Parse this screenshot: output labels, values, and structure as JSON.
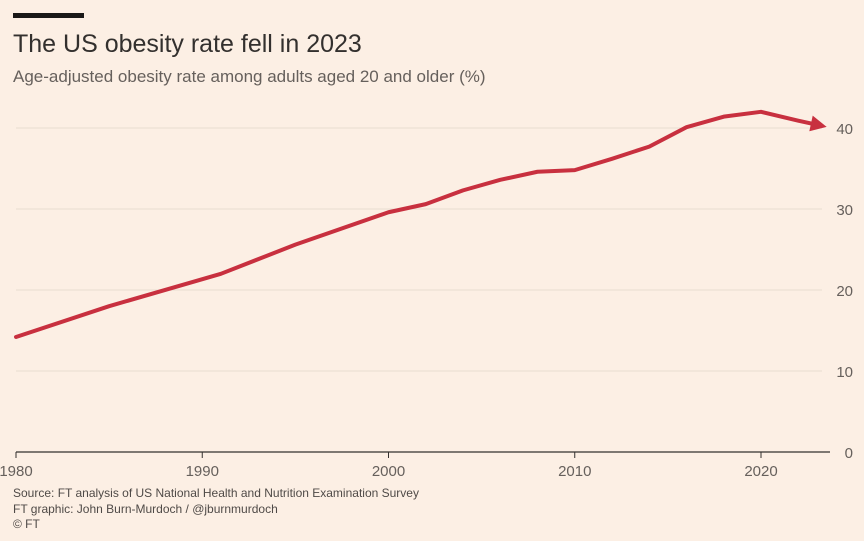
{
  "header": {
    "title": "The US obesity rate fell in 2023",
    "subtitle": "Age-adjusted obesity rate among adults aged 20 and older (%)"
  },
  "footer": {
    "source": "Source: FT analysis of US National Health and Nutrition Examination Survey",
    "graphic": "FT graphic: John Burn-Murdoch / @jburnmurdoch",
    "copyright": "© FT"
  },
  "colors": {
    "background": "#fcefe4",
    "line": "#c8303f",
    "grid": "#e8dcd1",
    "axis": "#33302e",
    "tick_text": "#66605c"
  },
  "chart_data": {
    "type": "line",
    "title": "The US obesity rate fell in 2023",
    "subtitle": "Age-adjusted obesity rate among adults aged 20 and older (%)",
    "xlabel": "",
    "ylabel": "",
    "xlim": [
      1980,
      2024.5
    ],
    "ylim": [
      0,
      42
    ],
    "x_ticks": [
      1980,
      1990,
      2000,
      2010,
      2020
    ],
    "y_ticks": [
      0,
      10,
      20,
      30,
      40
    ],
    "y_axis_side": "right",
    "grid": "horizontal",
    "line_end_marker": "arrow",
    "series": [
      {
        "x": [
          1980,
          1985,
          1991,
          1995,
          2000,
          2002,
          2004,
          2006,
          2008,
          2010,
          2012,
          2014,
          2016,
          2018,
          2020,
          2022,
          2023
        ],
        "y": [
          14.2,
          18,
          22,
          25.6,
          29.6,
          30.6,
          32.3,
          33.6,
          34.6,
          34.8,
          36.2,
          37.7,
          40.1,
          41.4,
          42.0,
          40.9,
          40.4
        ]
      }
    ]
  }
}
